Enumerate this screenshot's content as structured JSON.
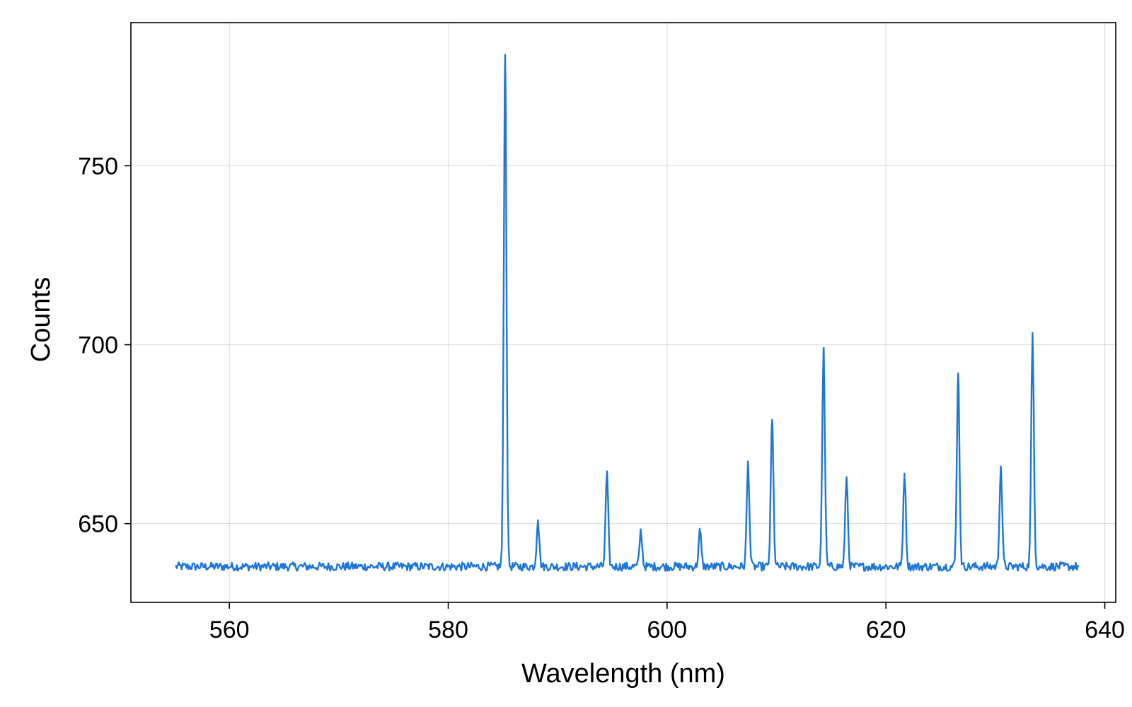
{
  "chart_data": {
    "type": "line",
    "title": "",
    "xlabel": "Wavelength (nm)",
    "ylabel": "Counts",
    "xlim": [
      551,
      641
    ],
    "ylim": [
      628,
      790
    ],
    "xticks": [
      560,
      580,
      600,
      620,
      640
    ],
    "xtick_labels": [
      "560",
      "580",
      "600",
      "620",
      "640"
    ],
    "yticks": [
      650,
      700,
      750
    ],
    "ytick_labels": [
      "650",
      "700",
      "750"
    ],
    "grid": true,
    "legend": "none",
    "series": [
      {
        "color": "#1f77d4",
        "x_range": [
          555.1,
          637.7
        ],
        "baseline": 638,
        "noise_amplitude": 1.2,
        "peak_width_nm": 0.12,
        "peaks": [
          {
            "x": 585.2,
            "y": 781
          },
          {
            "x": 588.2,
            "y": 651
          },
          {
            "x": 594.5,
            "y": 664
          },
          {
            "x": 597.6,
            "y": 648
          },
          {
            "x": 603.0,
            "y": 648
          },
          {
            "x": 607.4,
            "y": 667
          },
          {
            "x": 609.6,
            "y": 679
          },
          {
            "x": 614.3,
            "y": 699
          },
          {
            "x": 616.4,
            "y": 663
          },
          {
            "x": 621.7,
            "y": 664
          },
          {
            "x": 626.6,
            "y": 692
          },
          {
            "x": 630.5,
            "y": 666
          },
          {
            "x": 633.4,
            "y": 703
          }
        ]
      }
    ]
  }
}
